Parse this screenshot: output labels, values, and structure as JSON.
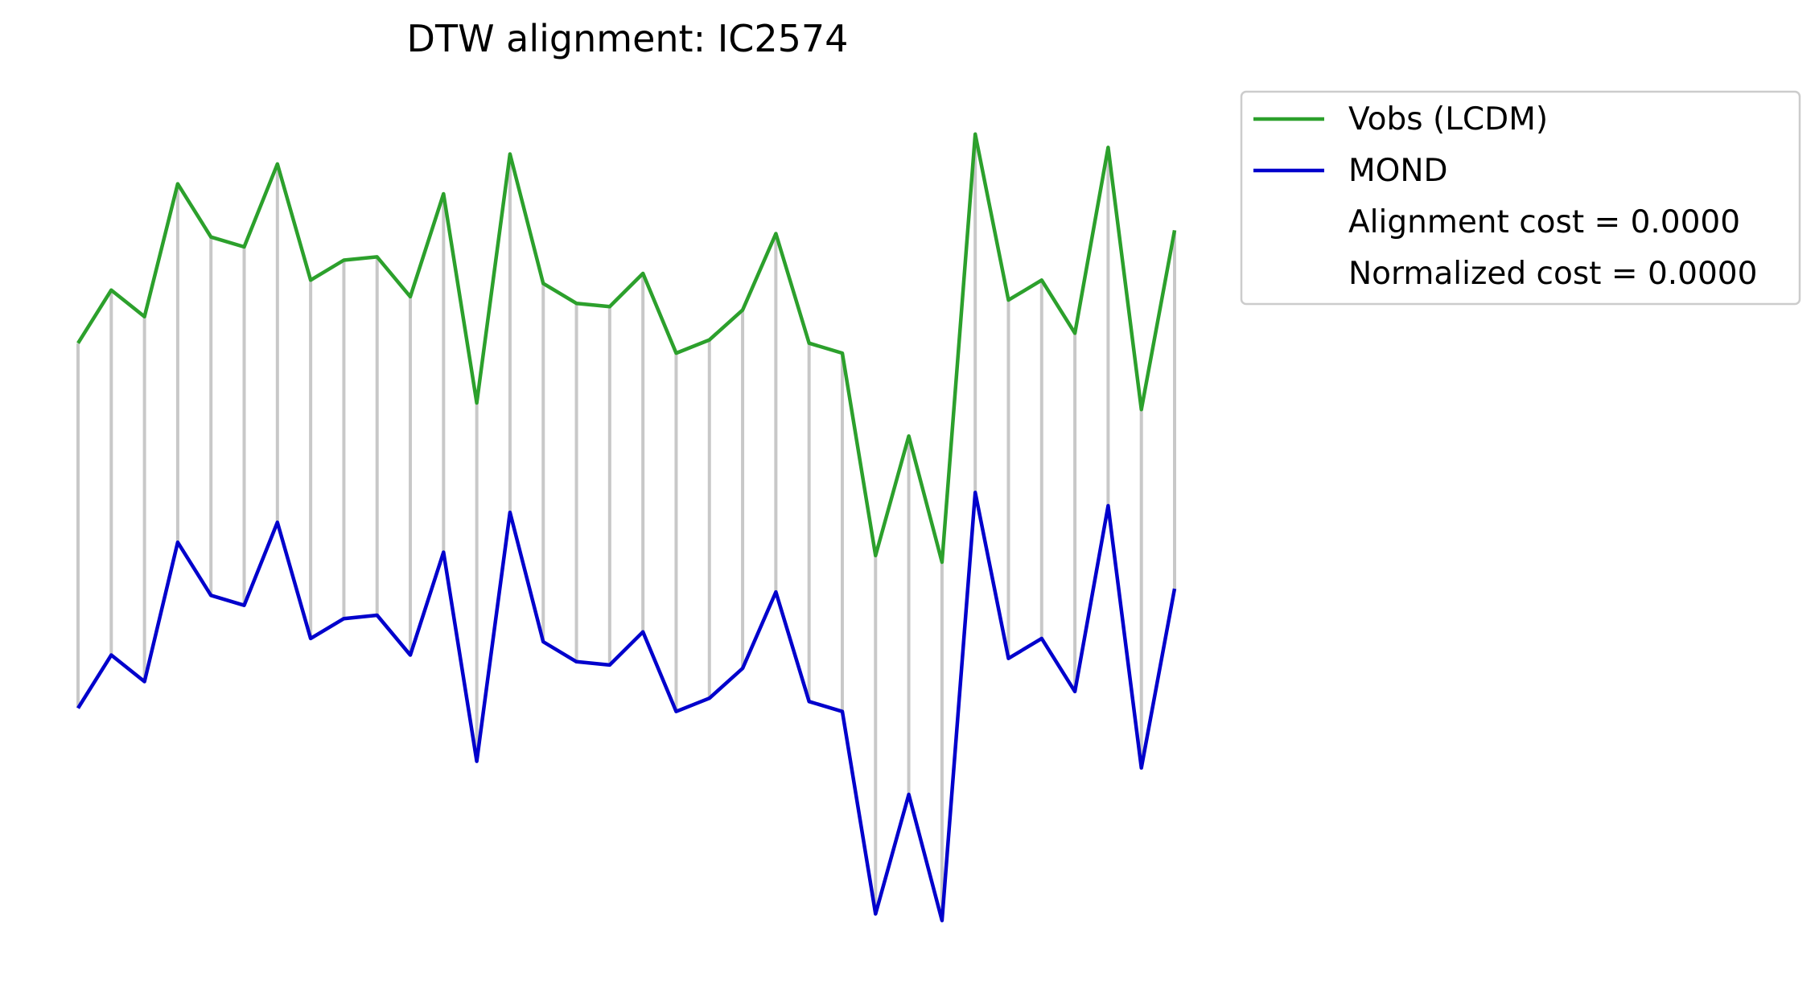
{
  "chart_data": {
    "type": "line",
    "title": "DTW alignment: IC2574",
    "axes_visible": false,
    "grid": false,
    "legend_position": "upper-right-outside",
    "x": [
      0,
      1,
      2,
      3,
      4,
      5,
      6,
      7,
      8,
      9,
      10,
      11,
      12,
      13,
      14,
      15,
      16,
      17,
      18,
      19,
      20,
      21,
      22,
      23,
      24,
      25,
      26,
      27,
      28,
      29,
      30,
      31,
      32,
      33
    ],
    "series": [
      {
        "name": "Vobs (LCDM)",
        "color": "#2ca02c",
        "values": [
          0.51,
          0.67,
          0.59,
          0.99,
          0.83,
          0.8,
          1.05,
          0.7,
          0.76,
          0.77,
          0.65,
          0.96,
          0.33,
          1.08,
          0.69,
          0.63,
          0.62,
          0.72,
          0.48,
          0.52,
          0.61,
          0.84,
          0.51,
          0.48,
          -0.13,
          0.23,
          -0.15,
          1.14,
          0.64,
          0.7,
          0.54,
          1.1,
          0.31,
          0.85
        ]
      },
      {
        "name": "MOND",
        "color": "#0000cc",
        "values": [
          -0.59,
          -0.43,
          -0.51,
          -0.09,
          -0.25,
          -0.28,
          -0.03,
          -0.38,
          -0.32,
          -0.31,
          -0.43,
          -0.12,
          -0.75,
          0.0,
          -0.39,
          -0.45,
          -0.46,
          -0.36,
          -0.6,
          -0.56,
          -0.47,
          -0.24,
          -0.57,
          -0.6,
          -1.21,
          -0.85,
          -1.23,
          0.06,
          -0.44,
          -0.38,
          -0.54,
          0.02,
          -0.77,
          -0.23
        ]
      }
    ],
    "alignment": {
      "color": "#c8c8c8",
      "pairs": [
        [
          0,
          0
        ],
        [
          1,
          1
        ],
        [
          2,
          2
        ],
        [
          3,
          3
        ],
        [
          4,
          4
        ],
        [
          5,
          5
        ],
        [
          6,
          6
        ],
        [
          7,
          7
        ],
        [
          8,
          8
        ],
        [
          9,
          9
        ],
        [
          10,
          10
        ],
        [
          11,
          11
        ],
        [
          12,
          12
        ],
        [
          13,
          13
        ],
        [
          14,
          14
        ],
        [
          15,
          15
        ],
        [
          16,
          16
        ],
        [
          17,
          17
        ],
        [
          18,
          18
        ],
        [
          19,
          19
        ],
        [
          20,
          20
        ],
        [
          21,
          21
        ],
        [
          22,
          22
        ],
        [
          23,
          23
        ],
        [
          24,
          24
        ],
        [
          25,
          25
        ],
        [
          26,
          26
        ],
        [
          27,
          27
        ],
        [
          28,
          28
        ],
        [
          29,
          29
        ],
        [
          30,
          30
        ],
        [
          31,
          31
        ],
        [
          32,
          32
        ],
        [
          33,
          33
        ]
      ]
    },
    "legend": [
      {
        "label": "Vobs (LCDM)",
        "color": "#2ca02c",
        "marker": "line"
      },
      {
        "label": "MOND",
        "color": "#0000cc",
        "marker": "line"
      },
      {
        "label": "Alignment cost = 0.0000",
        "marker": "none"
      },
      {
        "label": "Normalized cost = 0.0000",
        "marker": "none"
      }
    ],
    "ylim": [
      -1.26,
      1.2
    ]
  }
}
